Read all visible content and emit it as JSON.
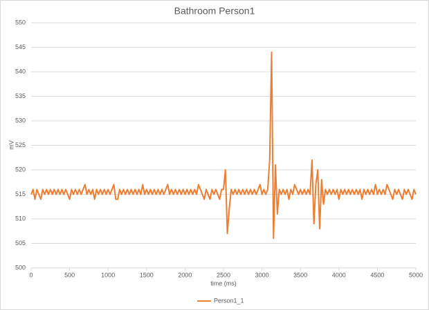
{
  "chart_data": {
    "type": "line",
    "title": "Bathroom Person1",
    "xlabel": "time (ms)",
    "ylabel": "mV",
    "xlim": [
      0,
      5000
    ],
    "xticks": [
      0,
      500,
      1000,
      1500,
      2000,
      2500,
      3000,
      3500,
      4000,
      4500,
      5000
    ],
    "ylim": [
      500,
      550
    ],
    "yticks": [
      500,
      505,
      510,
      515,
      520,
      525,
      530,
      535,
      540,
      545,
      550
    ],
    "grid": true,
    "legend": "bottom",
    "x": [
      0,
      25,
      50,
      75,
      100,
      125,
      150,
      175,
      200,
      225,
      250,
      275,
      300,
      325,
      350,
      375,
      400,
      425,
      450,
      475,
      500,
      525,
      550,
      575,
      600,
      625,
      650,
      675,
      700,
      725,
      750,
      775,
      800,
      825,
      850,
      875,
      900,
      925,
      950,
      975,
      1000,
      1025,
      1050,
      1075,
      1100,
      1125,
      1150,
      1175,
      1200,
      1225,
      1250,
      1275,
      1300,
      1325,
      1350,
      1375,
      1400,
      1425,
      1450,
      1475,
      1500,
      1525,
      1550,
      1575,
      1600,
      1625,
      1650,
      1675,
      1700,
      1725,
      1750,
      1775,
      1800,
      1825,
      1850,
      1875,
      1900,
      1925,
      1950,
      1975,
      2000,
      2025,
      2050,
      2075,
      2100,
      2125,
      2150,
      2175,
      2200,
      2225,
      2250,
      2275,
      2300,
      2325,
      2350,
      2375,
      2400,
      2425,
      2450,
      2475,
      2500,
      2525,
      2550,
      2575,
      2600,
      2625,
      2650,
      2675,
      2700,
      2725,
      2750,
      2775,
      2800,
      2825,
      2850,
      2875,
      2900,
      2925,
      2950,
      2975,
      3000,
      3025,
      3050,
      3075,
      3100,
      3125,
      3150,
      3175,
      3200,
      3225,
      3250,
      3275,
      3300,
      3325,
      3350,
      3375,
      3400,
      3425,
      3450,
      3475,
      3500,
      3525,
      3550,
      3575,
      3600,
      3625,
      3650,
      3675,
      3700,
      3725,
      3750,
      3775,
      3800,
      3825,
      3850,
      3875,
      3900,
      3925,
      3950,
      3975,
      4000,
      4025,
      4050,
      4075,
      4100,
      4125,
      4150,
      4175,
      4200,
      4225,
      4250,
      4275,
      4300,
      4325,
      4350,
      4375,
      4400,
      4425,
      4450,
      4475,
      4500,
      4525,
      4550,
      4575,
      4600,
      4625,
      4650,
      4675,
      4700,
      4725,
      4750,
      4775,
      4800,
      4825,
      4850,
      4875,
      4900,
      4925,
      4950,
      4975,
      5000
    ],
    "series": [
      {
        "name": "Person1_1",
        "color": "#ed7d31",
        "values": [
          515,
          516,
          514,
          516,
          515,
          514,
          516,
          515,
          516,
          515,
          516,
          515,
          516,
          515,
          516,
          515,
          516,
          515,
          516,
          515,
          514,
          516,
          515,
          516,
          515,
          516,
          515,
          516,
          517,
          515,
          516,
          515,
          516,
          514,
          516,
          515,
          516,
          515,
          516,
          515,
          516,
          515,
          516,
          517,
          514,
          514,
          516,
          515,
          516,
          515,
          516,
          515,
          516,
          515,
          516,
          515,
          516,
          515,
          517,
          515,
          516,
          515,
          516,
          515,
          516,
          515,
          516,
          515,
          516,
          515,
          516,
          517,
          515,
          516,
          515,
          516,
          515,
          516,
          515,
          516,
          515,
          516,
          515,
          516,
          515,
          516,
          515,
          517,
          516,
          515,
          514,
          516,
          515,
          514,
          516,
          515,
          516,
          515,
          514,
          516,
          516,
          520,
          507,
          512,
          516,
          515,
          516,
          515,
          516,
          515,
          516,
          515,
          516,
          515,
          516,
          515,
          516,
          515,
          516,
          517,
          515,
          516,
          515,
          516,
          522,
          544,
          506,
          521,
          511,
          516,
          515,
          516,
          515,
          516,
          514,
          516,
          515,
          517,
          516,
          515,
          516,
          515,
          516,
          515,
          516,
          515,
          522,
          509,
          517,
          520,
          508,
          518,
          513,
          516,
          515,
          516,
          515,
          516,
          515,
          516,
          514,
          516,
          515,
          516,
          515,
          516,
          515,
          516,
          515,
          516,
          515,
          516,
          514,
          516,
          515,
          516,
          515,
          516,
          515,
          517,
          515,
          516,
          515,
          516,
          515,
          517,
          516,
          515,
          514,
          516,
          515,
          516,
          515,
          514,
          516,
          515,
          516,
          515,
          514,
          516,
          515
        ]
      }
    ]
  }
}
